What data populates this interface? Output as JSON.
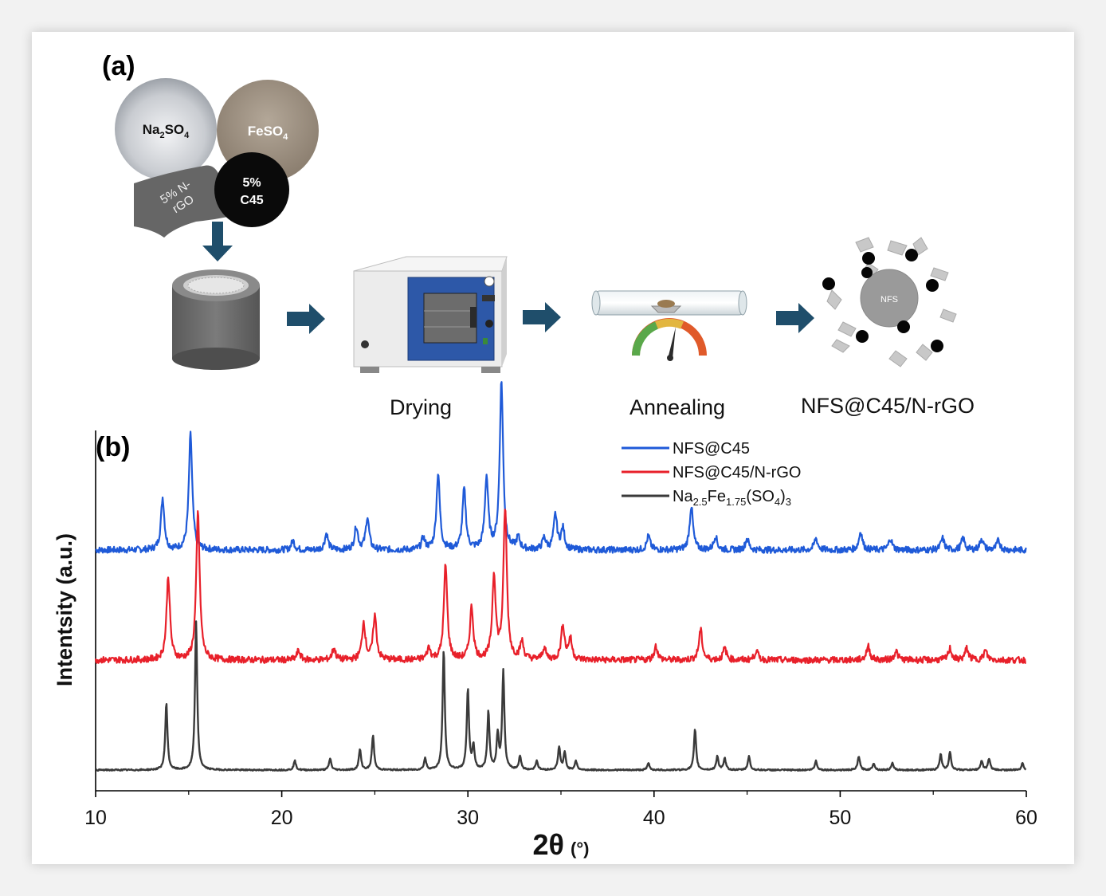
{
  "panel_a": {
    "label": "(a)",
    "precursors": {
      "na2so4": {
        "base": "Na",
        "sub1": "2",
        "mid": "SO",
        "sub2": "4"
      },
      "feso4": {
        "base": "FeSO",
        "sub": "4"
      },
      "nrgo": {
        "line1": "5% N-",
        "line2": "rGO"
      },
      "c45": {
        "line1": "5%",
        "line2": "C45"
      }
    },
    "steps": {
      "drying": "Drying",
      "annealing": "Annealing",
      "product": "NFS@C45/N-rGO"
    },
    "nfs_core_label": "NFS",
    "colors": {
      "arrow": "#1f4e6b",
      "nrgo_sheet": "#666666",
      "c45_ball": "#0a0a0a",
      "feso4_ball": "#9c8f80",
      "oven_door": "#2d58a8"
    }
  },
  "panel_b": {
    "label": "(b)",
    "xlabel_main": "2θ",
    "xlabel_unit": "(°)",
    "ylabel": "Intentsity (a.u.)",
    "legend": [
      {
        "name": "NFS@C45",
        "color": "#1f5ad8"
      },
      {
        "name": "NFS@C45/N-rGO",
        "color": "#e8202a"
      },
      {
        "name_base": "Na",
        "sub1": "2.5",
        "mid": "Fe",
        "sub2": "1.75",
        "tail": "(SO",
        "sub3": "4",
        "end": ")",
        "sub4": "3",
        "color": "#3a3a3a"
      }
    ]
  },
  "chart_data": {
    "type": "line",
    "title": "",
    "xlabel": "2θ (°)",
    "ylabel": "Intentsity (a.u.)",
    "xlim": [
      10,
      60
    ],
    "xticks": [
      10,
      20,
      30,
      40,
      50,
      60
    ],
    "yticks_shown": false,
    "grid": false,
    "legend_position": "top-center",
    "series": [
      {
        "name": "NFS@C45",
        "color": "#1f5ad8",
        "offset": 2.0,
        "peaks": [
          [
            13.6,
            0.45
          ],
          [
            15.1,
            1.0
          ],
          [
            20.6,
            0.08
          ],
          [
            22.4,
            0.14
          ],
          [
            24.0,
            0.2
          ],
          [
            24.6,
            0.28
          ],
          [
            27.6,
            0.1
          ],
          [
            28.4,
            0.66
          ],
          [
            29.8,
            0.52
          ],
          [
            31.0,
            0.62
          ],
          [
            31.8,
            1.45
          ],
          [
            32.7,
            0.1
          ],
          [
            34.1,
            0.1
          ],
          [
            34.7,
            0.3
          ],
          [
            35.1,
            0.18
          ],
          [
            39.7,
            0.12
          ],
          [
            42.0,
            0.38
          ],
          [
            43.3,
            0.12
          ],
          [
            45.0,
            0.1
          ],
          [
            48.7,
            0.1
          ],
          [
            51.1,
            0.16
          ],
          [
            52.7,
            0.1
          ],
          [
            55.5,
            0.1
          ],
          [
            56.6,
            0.1
          ],
          [
            57.6,
            0.1
          ],
          [
            58.5,
            0.08
          ]
        ]
      },
      {
        "name": "NFS@C45/N-rGO",
        "color": "#e8202a",
        "offset": 1.0,
        "peaks": [
          [
            13.9,
            0.72
          ],
          [
            15.5,
            1.28
          ],
          [
            20.9,
            0.08
          ],
          [
            22.8,
            0.1
          ],
          [
            24.4,
            0.32
          ],
          [
            25.0,
            0.38
          ],
          [
            27.9,
            0.1
          ],
          [
            28.8,
            0.82
          ],
          [
            30.2,
            0.45
          ],
          [
            31.4,
            0.72
          ],
          [
            32.0,
            1.3
          ],
          [
            32.9,
            0.15
          ],
          [
            34.1,
            0.1
          ],
          [
            35.1,
            0.3
          ],
          [
            35.5,
            0.18
          ],
          [
            40.1,
            0.12
          ],
          [
            42.5,
            0.26
          ],
          [
            43.8,
            0.1
          ],
          [
            45.5,
            0.08
          ],
          [
            51.5,
            0.12
          ],
          [
            53.0,
            0.08
          ],
          [
            55.9,
            0.1
          ],
          [
            56.8,
            0.1
          ],
          [
            57.8,
            0.08
          ]
        ]
      },
      {
        "name": "Na2.5Fe1.75(SO4)3",
        "color": "#3a3a3a",
        "offset": 0.0,
        "peaks": [
          [
            13.8,
            0.58
          ],
          [
            15.4,
            1.28
          ],
          [
            20.7,
            0.08
          ],
          [
            22.6,
            0.1
          ],
          [
            24.2,
            0.18
          ],
          [
            24.9,
            0.3
          ],
          [
            27.7,
            0.1
          ],
          [
            28.7,
            1.04
          ],
          [
            30.0,
            0.7
          ],
          [
            30.3,
            0.2
          ],
          [
            31.1,
            0.5
          ],
          [
            31.6,
            0.3
          ],
          [
            31.9,
            0.85
          ],
          [
            32.8,
            0.12
          ],
          [
            33.7,
            0.08
          ],
          [
            34.9,
            0.2
          ],
          [
            35.2,
            0.15
          ],
          [
            35.8,
            0.08
          ],
          [
            39.7,
            0.06
          ],
          [
            42.2,
            0.35
          ],
          [
            43.4,
            0.12
          ],
          [
            43.8,
            0.1
          ],
          [
            45.1,
            0.12
          ],
          [
            48.7,
            0.08
          ],
          [
            51.0,
            0.12
          ],
          [
            51.8,
            0.06
          ],
          [
            52.8,
            0.06
          ],
          [
            55.4,
            0.14
          ],
          [
            55.9,
            0.16
          ],
          [
            57.6,
            0.08
          ],
          [
            58.0,
            0.1
          ],
          [
            59.8,
            0.06
          ]
        ]
      }
    ]
  }
}
